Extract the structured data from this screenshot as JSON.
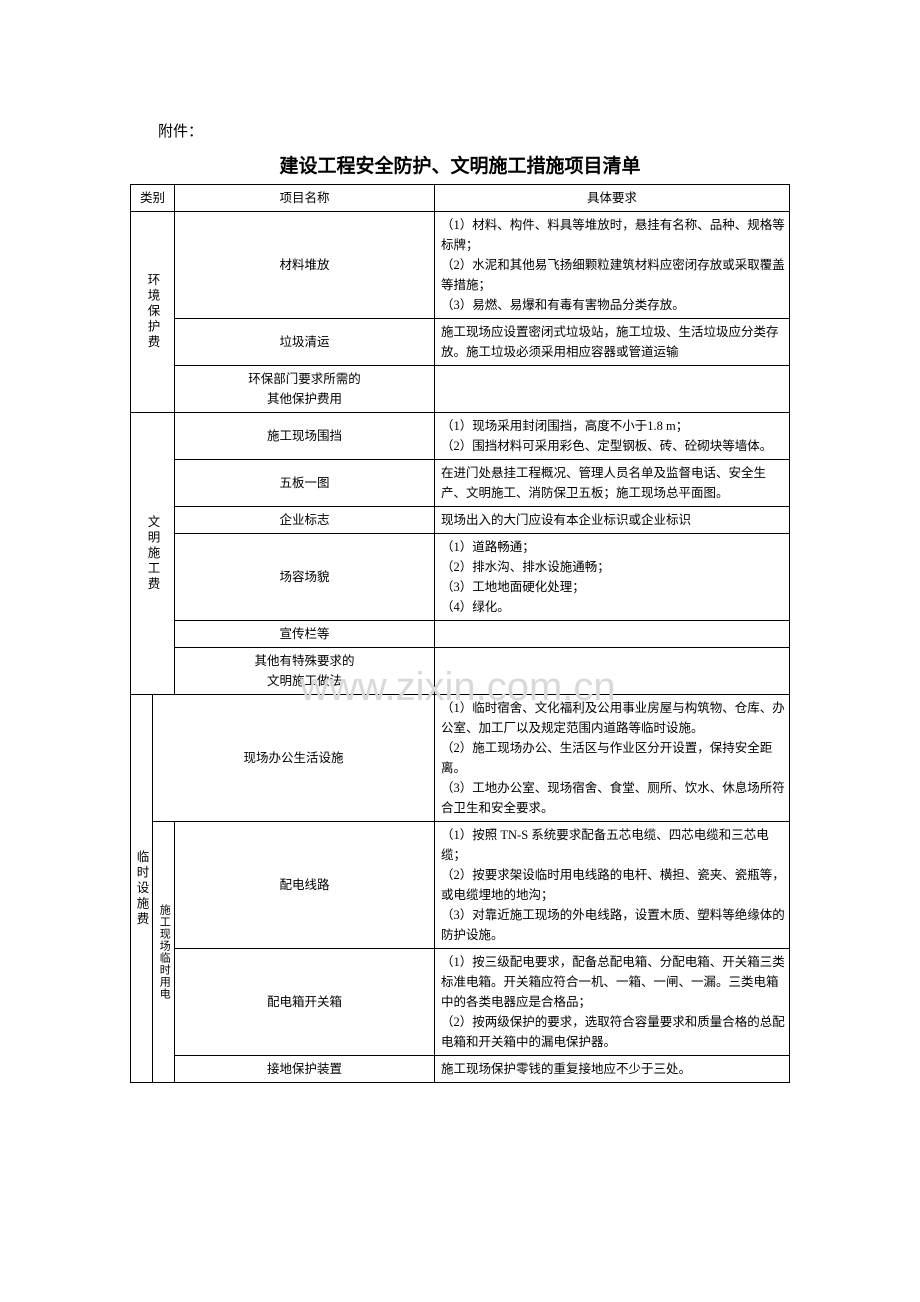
{
  "attachment_label": "附件：",
  "title": "建设工程安全防护、文明施工措施项目清单",
  "watermark": "www.zixin.com.cn",
  "headers": {
    "category": "类别",
    "name": "项目名称",
    "requirement": "具体要求"
  },
  "categories": {
    "env": "环境保护费",
    "civil": "文明施工费",
    "temp": "临时设施费",
    "site": "施工现场",
    "elec": "临时用电"
  },
  "rows": {
    "env1": {
      "name": "材料堆放",
      "req": "（1）材料、构件、料具等堆放时，悬挂有名称、品种、规格等标牌；\n（2）水泥和其他易飞扬细颗粒建筑材料应密闭存放或采取覆盖等措施；\n（3）易燃、易爆和有毒有害物品分类存放。"
    },
    "env2": {
      "name": "垃圾清运",
      "req": "施工现场应设置密闭式垃圾站，施工垃圾、生活垃圾应分类存放。施工垃圾必须采用相应容器或管道运输"
    },
    "env3": {
      "name": "环保部门要求所需的\n其他保护费用",
      "req": ""
    },
    "civ1": {
      "name": "施工现场围挡",
      "req": "（1）现场采用封闭围挡，高度不小于1.8 m；\n（2）围挡材料可采用彩色、定型钢板、砖、砼砌块等墙体。"
    },
    "civ2": {
      "name": "五板一图",
      "req": "在进门处悬挂工程概况、管理人员名单及监督电话、安全生产、文明施工、消防保卫五板；施工现场总平面图。"
    },
    "civ3": {
      "name": "企业标志",
      "req": "现场出入的大门应设有本企业标识或企业标识"
    },
    "civ4": {
      "name": "场容场貌",
      "req": "（1）道路畅通；\n（2）排水沟、排水设施通畅；\n（3）工地地面硬化处理；\n（4）绿化。"
    },
    "civ5": {
      "name": "宣传栏等",
      "req": ""
    },
    "civ6": {
      "name": "其他有特殊要求的\n文明施工做法",
      "req": ""
    },
    "tmp1": {
      "name": "现场办公生活设施",
      "req": "（1）临时宿舍、文化福利及公用事业房屋与构筑物、仓库、办公室、加工厂以及规定范围内道路等临时设施。\n（2）施工现场办公、生活区与作业区分开设置，保持安全距离。\n（3）工地办公室、现场宿舍、食堂、厕所、饮水、休息场所符合卫生和安全要求。"
    },
    "tmp2": {
      "name": "配电线路",
      "req": "（1）按照 TN-S 系统要求配备五芯电缆、四芯电缆和三芯电缆；\n（2）按要求架设临时用电线路的电杆、横担、瓷夹、瓷瓶等，或电缆埋地的地沟；\n（3）对靠近施工现场的外电线路，设置木质、塑料等绝缘体的防护设施。"
    },
    "tmp3": {
      "name": "配电箱开关箱",
      "req": "（1）按三级配电要求，配备总配电箱、分配电箱、开关箱三类标准电箱。开关箱应符合一机、一箱、一闸、一漏。三类电箱中的各类电器应是合格品；\n（2）按两级保护的要求，选取符合容量要求和质量合格的总配电箱和开关箱中的漏电保护器。"
    },
    "tmp4": {
      "name": "接地保护装置",
      "req": "施工现场保护零钱的重复接地应不少于三处。"
    }
  }
}
